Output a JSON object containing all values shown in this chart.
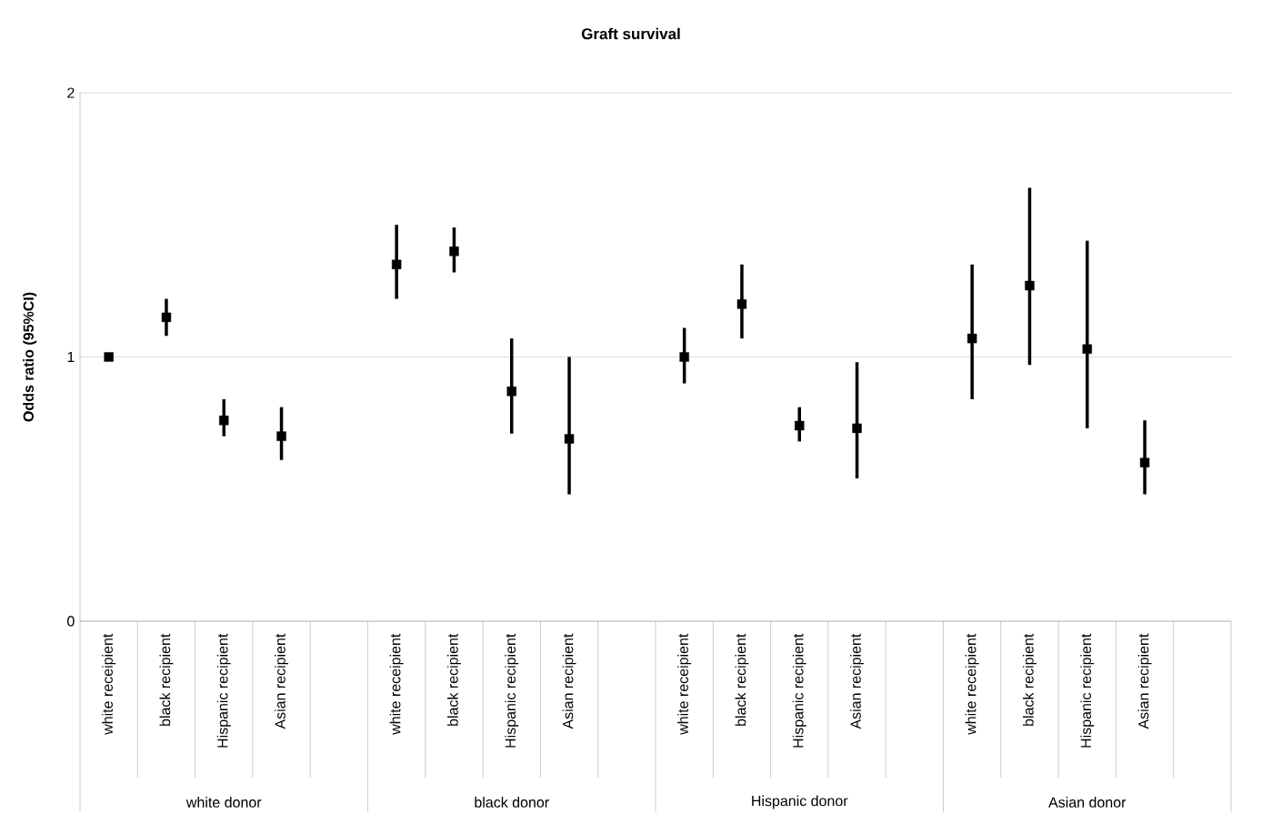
{
  "chart_data": {
    "type": "scatter",
    "title": "Graft survival",
    "ylabel": "Odds ratio (95%CI)",
    "categories": [
      "white receipient",
      "black recipient",
      "Hispanic recipient",
      "Asian recipient",
      null,
      "white receipient",
      "black recipient",
      "Hispanic recipient",
      "Asian recipient",
      null,
      "white receipient",
      "black recipient",
      "Hispanic recipient",
      "Asian recipient",
      null,
      "white receipient",
      "black recipient",
      "Hispanic recipient",
      "Asian recipient",
      null
    ],
    "values": [
      1.0,
      1.15,
      0.76,
      0.7,
      null,
      1.35,
      1.4,
      0.87,
      0.69,
      null,
      1.0,
      1.2,
      0.74,
      0.73,
      null,
      1.07,
      1.27,
      1.03,
      0.6,
      null
    ],
    "errors": [
      [
        0.99,
        1.01
      ],
      [
        1.08,
        1.22
      ],
      [
        0.7,
        0.84
      ],
      [
        0.61,
        0.81
      ],
      null,
      [
        1.22,
        1.5
      ],
      [
        1.32,
        1.49
      ],
      [
        0.71,
        1.07
      ],
      [
        0.48,
        1.0
      ],
      null,
      [
        0.9,
        1.11
      ],
      [
        1.07,
        1.35
      ],
      [
        0.68,
        0.81
      ],
      [
        0.54,
        0.98
      ],
      null,
      [
        0.84,
        1.35
      ],
      [
        0.97,
        1.64
      ],
      [
        0.73,
        1.44
      ],
      [
        0.48,
        0.76
      ],
      null
    ],
    "color": "#000000",
    "marker": "square",
    "ylim": [
      0,
      2
    ],
    "yticks": [
      0,
      1,
      2
    ],
    "grid": "y",
    "annotations": [
      "white donor",
      "black donor",
      "Hispanic donor",
      "Asian donor"
    ]
  }
}
